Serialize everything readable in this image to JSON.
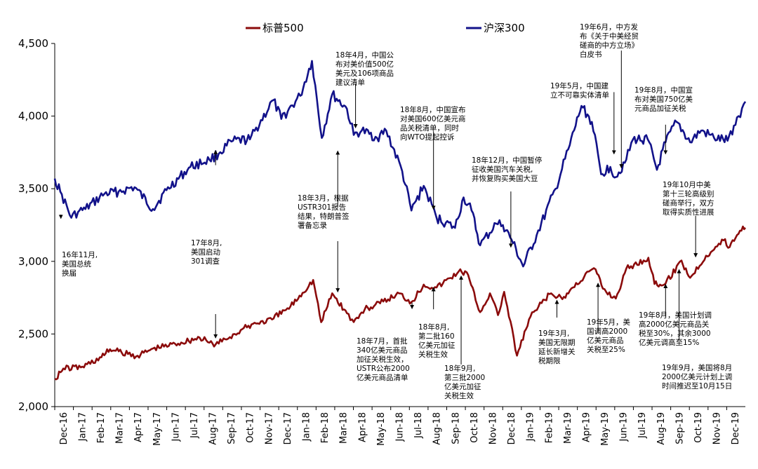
{
  "chart_data": {
    "type": "line",
    "legend_position": "top-center",
    "grid": false,
    "colors": {
      "sp500": "#8b0b0b",
      "csi300": "#12128a",
      "annotation": "#000000"
    },
    "series": [
      {
        "name": "标普500",
        "key": "sp500"
      },
      {
        "name": "沪深300",
        "key": "csi300"
      }
    ],
    "y_axis": {
      "min": 2000,
      "max": 4500,
      "ticks": [
        "2,000",
        "2,500",
        "3,000",
        "3,500",
        "4,000",
        "4,500"
      ],
      "tick_values": [
        2000,
        2500,
        3000,
        3500,
        4000,
        4500
      ]
    },
    "x_axis": {
      "labels": [
        "Dec-16",
        "Jan-17",
        "Feb-17",
        "Mar-17",
        "Apr-17",
        "May-17",
        "Jun-17",
        "Jul-17",
        "Aug-17",
        "Sep-17",
        "Oct-17",
        "Nov-17",
        "Dec-17",
        "Jan-18",
        "Feb-18",
        "Mar-18",
        "Apr-18",
        "May-18",
        "Jun-18",
        "Jul-18",
        "Aug-18",
        "Sep-18",
        "Oct-18",
        "Nov-18",
        "Dec-18",
        "Jan-19",
        "Feb-19",
        "Mar-19",
        "Apr-19",
        "May-19",
        "Jun-19",
        "Jul-19",
        "Aug-19",
        "Sep-19",
        "Oct-19",
        "Nov-19",
        "Dec-19"
      ],
      "start": "2016-12-01",
      "end": "2019-12-31"
    },
    "sp500_points": [
      [
        "2016-12-01",
        2191
      ],
      [
        "2016-12-15",
        2262
      ],
      [
        "2017-01-15",
        2275
      ],
      [
        "2017-02-15",
        2340
      ],
      [
        "2017-03-01",
        2395
      ],
      [
        "2017-03-20",
        2372
      ],
      [
        "2017-04-15",
        2350
      ],
      [
        "2017-05-10",
        2400
      ],
      [
        "2017-06-15",
        2433
      ],
      [
        "2017-07-25",
        2475
      ],
      [
        "2017-08-10",
        2440
      ],
      [
        "2017-08-20",
        2428
      ],
      [
        "2017-09-20",
        2500
      ],
      [
        "2017-10-20",
        2570
      ],
      [
        "2017-11-20",
        2600
      ],
      [
        "2017-12-20",
        2690
      ],
      [
        "2018-01-26",
        2872
      ],
      [
        "2018-02-08",
        2581
      ],
      [
        "2018-02-26",
        2780
      ],
      [
        "2018-03-22",
        2643
      ],
      [
        "2018-04-02",
        2582
      ],
      [
        "2018-04-20",
        2670
      ],
      [
        "2018-05-15",
        2711
      ],
      [
        "2018-06-15",
        2780
      ],
      [
        "2018-07-05",
        2720
      ],
      [
        "2018-07-25",
        2840
      ],
      [
        "2018-08-15",
        2820
      ],
      [
        "2018-09-20",
        2930
      ],
      [
        "2018-10-03",
        2925
      ],
      [
        "2018-10-25",
        2650
      ],
      [
        "2018-11-10",
        2780
      ],
      [
        "2018-11-23",
        2630
      ],
      [
        "2018-12-03",
        2790
      ],
      [
        "2018-12-24",
        2351
      ],
      [
        "2019-01-15",
        2620
      ],
      [
        "2019-02-15",
        2775
      ],
      [
        "2019-03-08",
        2740
      ],
      [
        "2019-03-25",
        2820
      ],
      [
        "2019-04-20",
        2930
      ],
      [
        "2019-05-01",
        2945
      ],
      [
        "2019-05-13",
        2812
      ],
      [
        "2019-06-03",
        2744
      ],
      [
        "2019-06-20",
        2950
      ],
      [
        "2019-07-26",
        3025
      ],
      [
        "2019-08-05",
        2844
      ],
      [
        "2019-08-14",
        2840
      ],
      [
        "2019-08-23",
        2847
      ],
      [
        "2019-09-18",
        3006
      ],
      [
        "2019-10-02",
        2887
      ],
      [
        "2019-10-28",
        3039
      ],
      [
        "2019-11-28",
        3153
      ],
      [
        "2019-12-03",
        3093
      ],
      [
        "2019-12-27",
        3240
      ],
      [
        "2019-12-31",
        3231
      ]
    ],
    "csi300_points": [
      [
        "2016-12-01",
        3570
      ],
      [
        "2016-12-10",
        3480
      ],
      [
        "2016-12-28",
        3300
      ],
      [
        "2017-01-08",
        3340
      ],
      [
        "2017-01-20",
        3360
      ],
      [
        "2017-02-20",
        3465
      ],
      [
        "2017-03-15",
        3480
      ],
      [
        "2017-04-10",
        3510
      ],
      [
        "2017-05-10",
        3360
      ],
      [
        "2017-06-01",
        3490
      ],
      [
        "2017-07-10",
        3650
      ],
      [
        "2017-08-10",
        3700
      ],
      [
        "2017-08-25",
        3740
      ],
      [
        "2017-09-15",
        3825
      ],
      [
        "2017-10-15",
        3840
      ],
      [
        "2017-11-22",
        4110
      ],
      [
        "2017-12-05",
        3980
      ],
      [
        "2018-01-05",
        4140
      ],
      [
        "2018-01-24",
        4380
      ],
      [
        "2018-02-09",
        3850
      ],
      [
        "2018-02-26",
        4150
      ],
      [
        "2018-03-22",
        4050
      ],
      [
        "2018-04-02",
        3870
      ],
      [
        "2018-04-15",
        3900
      ],
      [
        "2018-05-10",
        3850
      ],
      [
        "2018-05-25",
        3900
      ],
      [
        "2018-06-20",
        3620
      ],
      [
        "2018-07-05",
        3350
      ],
      [
        "2018-07-25",
        3520
      ],
      [
        "2018-08-15",
        3300
      ],
      [
        "2018-09-14",
        3230
      ],
      [
        "2018-09-28",
        3440
      ],
      [
        "2018-10-11",
        3350
      ],
      [
        "2018-10-25",
        3110
      ],
      [
        "2018-11-20",
        3260
      ],
      [
        "2018-12-01",
        3250
      ],
      [
        "2018-12-15",
        3150
      ],
      [
        "2019-01-03",
        2965
      ],
      [
        "2019-01-25",
        3180
      ],
      [
        "2019-02-25",
        3500
      ],
      [
        "2019-03-20",
        3800
      ],
      [
        "2019-04-08",
        4070
      ],
      [
        "2019-04-25",
        3960
      ],
      [
        "2019-05-10",
        3600
      ],
      [
        "2019-05-25",
        3650
      ],
      [
        "2019-06-03",
        3580
      ],
      [
        "2019-06-20",
        3700
      ],
      [
        "2019-07-01",
        3840
      ],
      [
        "2019-07-25",
        3840
      ],
      [
        "2019-08-09",
        3630
      ],
      [
        "2019-08-23",
        3820
      ],
      [
        "2019-09-10",
        3960
      ],
      [
        "2019-10-02",
        3820
      ],
      [
        "2019-10-20",
        3900
      ],
      [
        "2019-11-10",
        3850
      ],
      [
        "2019-12-02",
        3830
      ],
      [
        "2019-12-20",
        4000
      ],
      [
        "2019-12-31",
        4100
      ]
    ],
    "annotations": [
      {
        "lines": [
          "16年11月,",
          "美国总统",
          "换届"
        ],
        "arrow_from": [
          "2016-12-11",
          3322
        ],
        "arrow_to": [
          "2016-12-11",
          3295
        ]
      },
      {
        "lines": [
          "17年8月,",
          "美国启动",
          "301调查"
        ],
        "arrow_from": [
          "2017-08-20",
          3662
        ],
        "arrow_to": [
          "2017-08-20",
          3764
        ],
        "arrow2_from": [
          "2017-08-20",
          2637
        ],
        "arrow2_to": [
          "2017-08-20",
          2472
        ]
      },
      {
        "lines": [
          "18年3月，根据",
          "USTR301报告",
          "结果，特朗普签",
          "署备忘录"
        ],
        "arrow_from": [
          "2018-03-07",
          3380
        ],
        "arrow_to": [
          "2018-03-07",
          3760
        ],
        "arrow2_from": [
          "2018-03-07",
          3139
        ],
        "arrow2_to": [
          "2018-03-07",
          2789
        ]
      },
      {
        "lines": [
          "18年4月，中国公",
          "布对美价值500亿",
          "美元及106项商品",
          "建议清单"
        ],
        "arrow_from": [
          "2018-04-05",
          4221
        ],
        "arrow_to": [
          "2018-04-05",
          3919
        ]
      },
      {
        "lines": [
          "18年7月，首批",
          "340亿美元商品",
          "加征关税生效，",
          "USTR公布2000",
          "亿美元商品清单"
        ],
        "arrow_from": [
          "2018-07-06",
          2716
        ],
        "arrow_to": [
          "2018-07-06",
          2674
        ]
      },
      {
        "lines": [
          "18年8月，中国宣布",
          "对美国600亿美元商",
          "品关税清单，同时",
          "向WTO提起控诉"
        ],
        "arrow_from": [
          "2018-08-10",
          3895
        ],
        "arrow_to": [
          "2018-08-10",
          3357
        ]
      },
      {
        "lines": [
          "18年8月,",
          "第二批160",
          "亿美元加征",
          "关税生效"
        ],
        "arrow_from": [
          "2018-08-10",
          2670
        ],
        "arrow_to": [
          "2018-08-10",
          2820
        ]
      },
      {
        "lines": [
          "18年9月,",
          "第三批2000",
          "亿美元加征",
          "关税生效"
        ],
        "arrow_from": [
          "2018-09-24",
          2290
        ],
        "arrow_to": [
          "2018-09-24",
          2900
        ]
      },
      {
        "lines": [
          "18年12月，中国暂停",
          "征收美国汽车关税,",
          "并恢复购买美国大豆"
        ],
        "arrow_from": [
          "2018-12-14",
          3481
        ],
        "arrow_to": [
          "2018-12-14",
          3097
        ]
      },
      {
        "lines": [
          "19年3月,",
          "美国无限期",
          "延长新增关",
          "税期限"
        ],
        "arrow_from": [
          "2019-02-27",
          2613
        ],
        "arrow_to": [
          "2019-02-27",
          2733
        ]
      },
      {
        "lines": [
          "19年5月，中国建",
          "立不可靠实体清单"
        ],
        "arrow_from": [
          "2019-05-31",
          4165
        ],
        "arrow_to": [
          "2019-05-31",
          3739
        ]
      },
      {
        "lines": [
          "19年5月，美",
          "国调高2000",
          "亿美元商品",
          "关税至25%"
        ],
        "arrow_from": [
          "2019-05-05",
          2507
        ],
        "arrow_to": [
          "2019-05-05",
          2850
        ]
      },
      {
        "lines": [
          "19年6月，中方发",
          "布《关于中美经贸",
          "磋商的中方立场》",
          "白皮书"
        ],
        "arrow_from": [
          "2019-06-12",
          4451
        ],
        "arrow_to": [
          "2019-06-12",
          3643
        ]
      },
      {
        "lines": [
          "19年8月，中国宣",
          "布对美国750亿美",
          "元商品加征关税"
        ],
        "arrow_from": [
          "2019-08-23",
          3941
        ],
        "arrow_to": [
          "2019-08-23",
          3739
        ]
      },
      {
        "lines": [
          "19年8月，美国计划调",
          "高2000亿美元商品关",
          "税至30%，其余3000",
          "亿美元调高至15%"
        ],
        "arrow_from": [
          "2019-08-23",
          2620
        ],
        "arrow_to": [
          "2019-08-23",
          2842
        ]
      },
      {
        "lines": [
          "19年10月中美",
          "第十三轮高级别",
          "磋商举行，双方",
          "取得实质性进展"
        ],
        "arrow_from": [
          "2019-10-11",
          3313
        ],
        "arrow_to": [
          "2019-10-11",
          3030
        ]
      },
      {
        "lines": [
          "19年9月，美国将8月",
          "2000亿美元计划上调",
          "时间推迟至10月15日"
        ],
        "arrow_from": [
          "2019-09-14",
          2454
        ],
        "arrow_to": [
          "2019-09-14",
          2944
        ]
      }
    ]
  },
  "annotation_label_positions": {}
}
